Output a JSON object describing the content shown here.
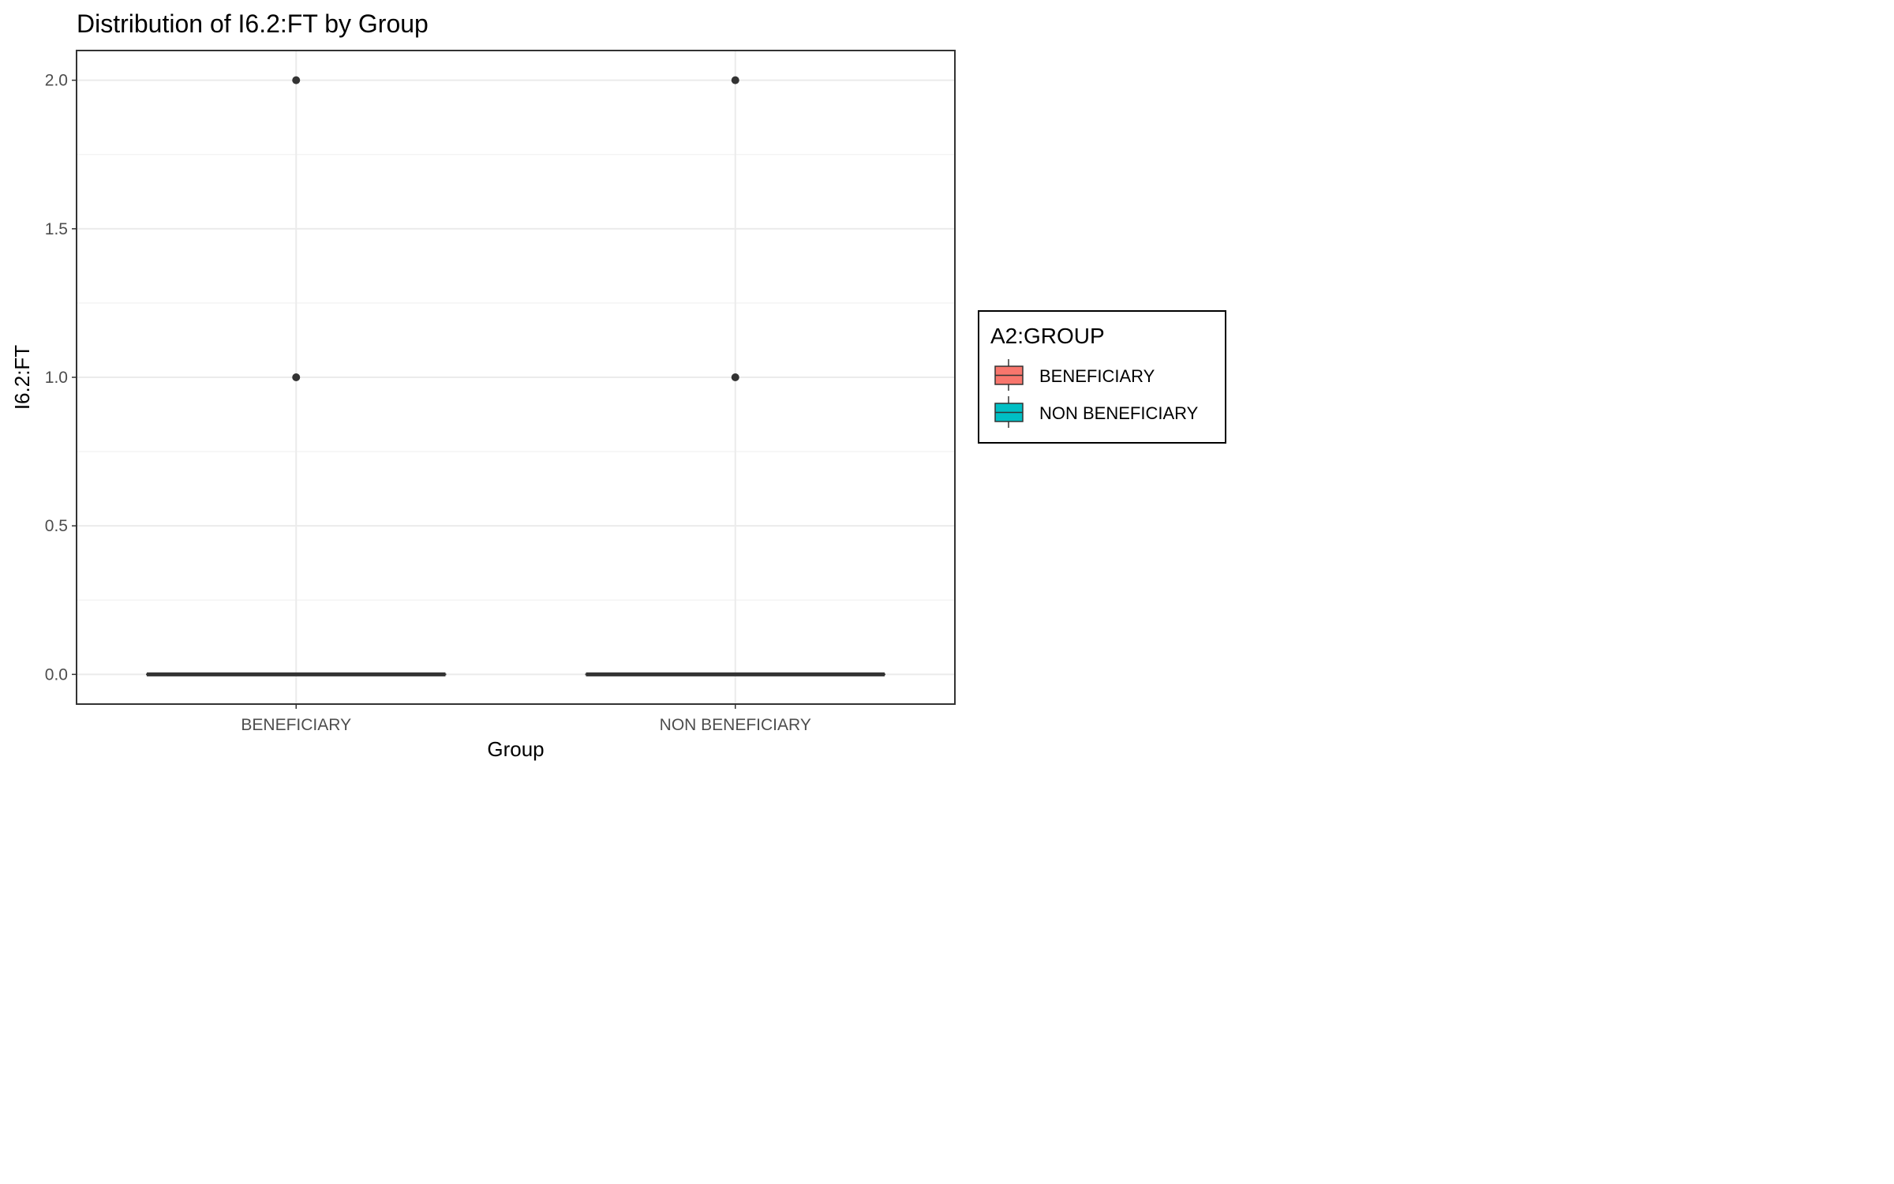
{
  "chart_data": {
    "type": "boxplot",
    "title": "Distribution of I6.2:FT by Group",
    "xlabel": "Group",
    "ylabel": "I6.2:FT",
    "categories": [
      "BENEFICIARY",
      "NON BENEFICIARY"
    ],
    "ylim": [
      -0.1,
      2.1
    ],
    "yticks": [
      0.0,
      0.5,
      1.0,
      1.5,
      2.0
    ],
    "ytick_labels": [
      "0.0",
      "0.5",
      "1.0",
      "1.5",
      "2.0"
    ],
    "grid": true,
    "legend": {
      "title": "A2:GROUP",
      "position": "right",
      "entries": [
        {
          "label": "BENEFICIARY",
          "color": "#F8766D"
        },
        {
          "label": "NON BENEFICIARY",
          "color": "#00BFC4"
        }
      ]
    },
    "boxes": [
      {
        "group": "BENEFICIARY",
        "min": 0,
        "q1": 0,
        "median": 0,
        "q3": 0,
        "max": 0,
        "outliers": [
          1,
          2
        ],
        "fill": "#F8766D"
      },
      {
        "group": "NON BENEFICIARY",
        "min": 0,
        "q1": 0,
        "median": 0,
        "q3": 0,
        "max": 0,
        "outliers": [
          1,
          2
        ],
        "fill": "#00BFC4"
      }
    ]
  }
}
